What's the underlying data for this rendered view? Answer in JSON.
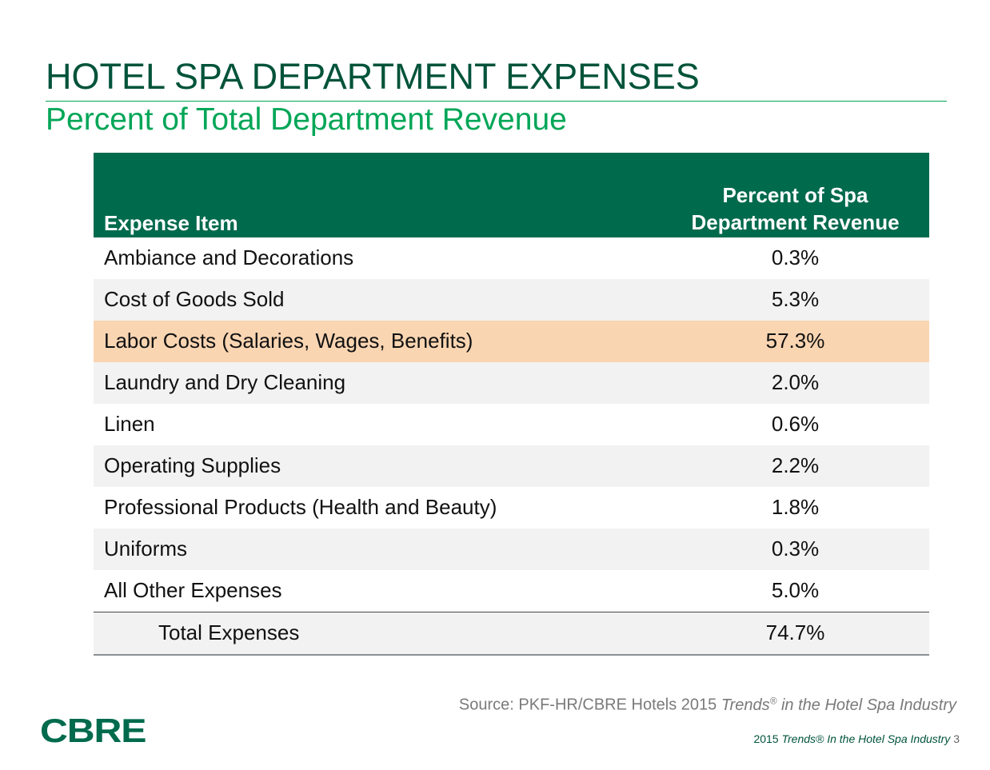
{
  "title": "HOTEL SPA DEPARTMENT EXPENSES",
  "subtitle": "Percent of Total Department Revenue",
  "table": {
    "headers": [
      "Expense Item",
      "Percent of Spa Department Revenue"
    ],
    "header_lines": [
      "Percent of Spa",
      "Department Revenue"
    ],
    "rows": [
      {
        "item": "Ambiance and Decorations",
        "value": "0.3%"
      },
      {
        "item": "Cost of Goods Sold",
        "value": "5.3%"
      },
      {
        "item": "Labor Costs (Salaries, Wages, Benefits)",
        "value": "57.3%",
        "highlighted": true
      },
      {
        "item": "Laundry and Dry Cleaning",
        "value": "2.0%"
      },
      {
        "item": "Linen",
        "value": "0.6%"
      },
      {
        "item": "Operating Supplies",
        "value": "2.2%"
      },
      {
        "item": "Professional Products (Health and Beauty)",
        "value": "1.8%"
      },
      {
        "item": "Uniforms",
        "value": "0.3%"
      },
      {
        "item": "All Other Expenses",
        "value": "5.0%"
      }
    ],
    "total": {
      "item": "Total Expenses",
      "value": "74.7%"
    }
  },
  "source": {
    "prefix": "Source: PKF-HR/CBRE Hotels 2015 ",
    "italic_a": "Trends",
    "reg": "®",
    "italic_b": " in the Hotel Spa Industry"
  },
  "logo": "CBRE",
  "footer": {
    "text": "2015 ",
    "italic": "Trends® In the Hotel Spa Industry",
    "page": "3"
  },
  "colors": {
    "dark_green": "#006a4d",
    "title_green": "#00533a",
    "accent_green": "#00a657",
    "highlight": "#fad5b2",
    "row_gray": "#f2f2f2"
  }
}
